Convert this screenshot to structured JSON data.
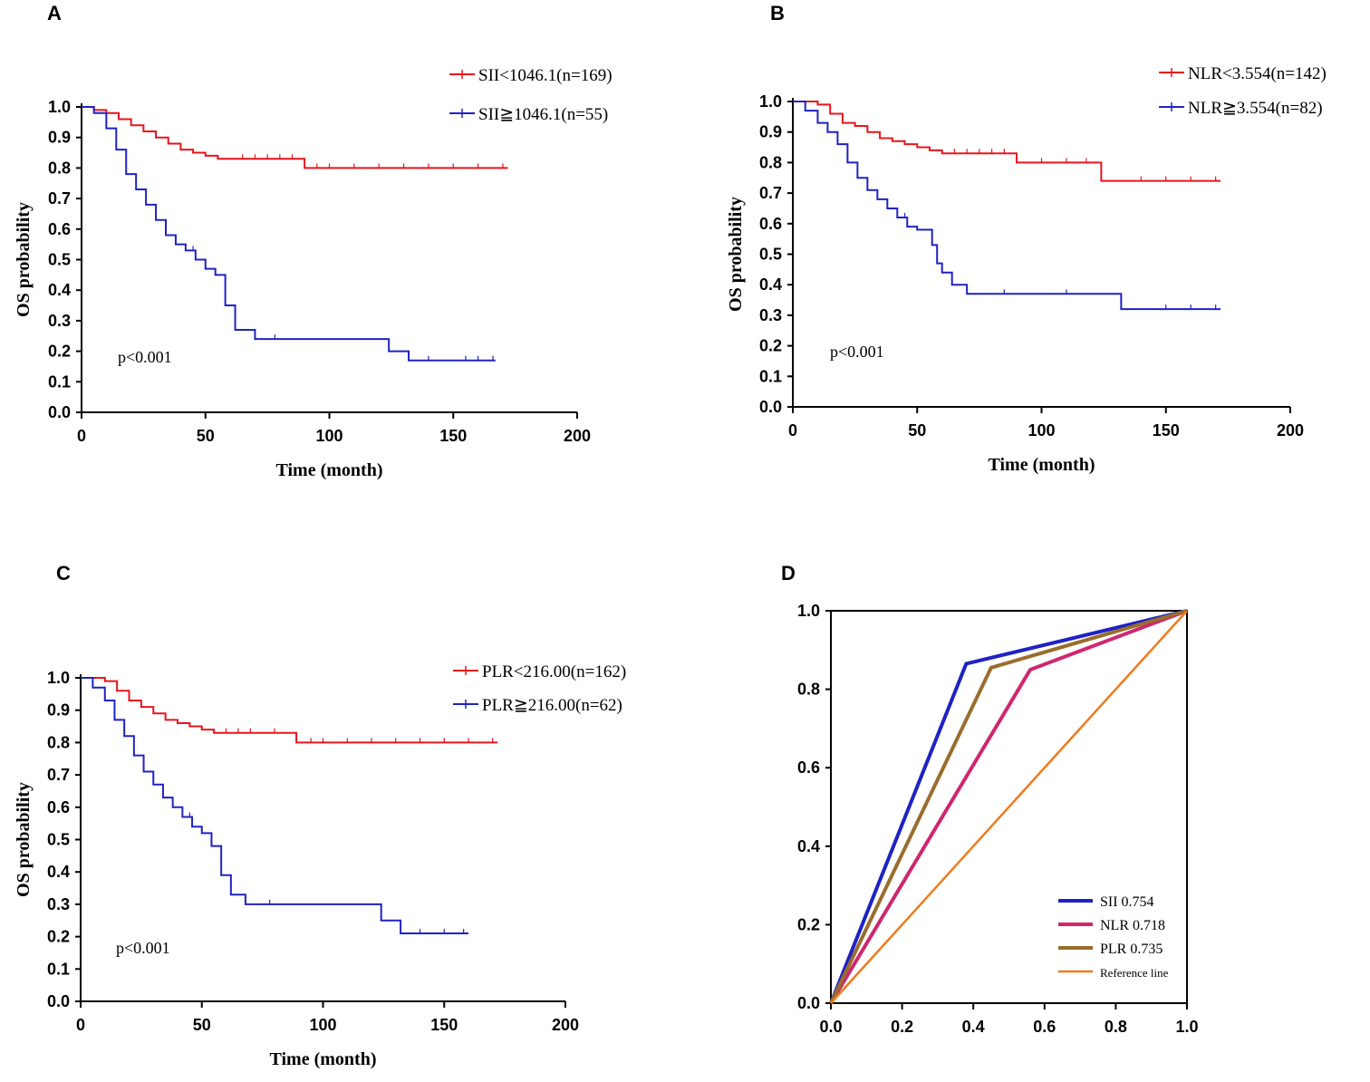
{
  "colors": {
    "red": "#e8141c",
    "blue": "#1f22c4",
    "magenta": "#d0266f",
    "brown": "#9a6d2d",
    "orange": "#f07a1c",
    "axis": "#000000"
  },
  "chart_data": [
    {
      "panel": "A",
      "type": "line",
      "subtype": "kaplan-meier",
      "xlabel": "Time (month)",
      "ylabel": "OS probability",
      "xlim": [
        0,
        200
      ],
      "ylim": [
        0,
        1.0
      ],
      "xticks": [
        "0",
        "50",
        "100",
        "150",
        "200"
      ],
      "yticks": [
        "0.0",
        "0.1",
        "0.2",
        "0.3",
        "0.4",
        "0.5",
        "0.6",
        "0.7",
        "0.8",
        "0.9",
        "1.0"
      ],
      "annotation": "p<0.001",
      "series": [
        {
          "name": "SII<1046.1(n=169)",
          "color": "red",
          "x": [
            0,
            5,
            10,
            15,
            20,
            25,
            30,
            35,
            40,
            45,
            50,
            55,
            60,
            90,
            172
          ],
          "y": [
            1.0,
            0.99,
            0.98,
            0.96,
            0.94,
            0.92,
            0.9,
            0.88,
            0.86,
            0.85,
            0.84,
            0.83,
            0.83,
            0.8,
            0.8
          ],
          "censor_x": [
            65,
            70,
            75,
            80,
            85,
            95,
            100,
            110,
            120,
            130,
            140,
            150,
            160,
            170
          ]
        },
        {
          "name": "SII≧1046.1(n=55)",
          "color": "blue",
          "x": [
            0,
            5,
            10,
            14,
            18,
            22,
            26,
            30,
            34,
            38,
            42,
            46,
            50,
            54,
            58,
            62,
            70,
            124,
            132,
            167
          ],
          "y": [
            1.0,
            0.98,
            0.93,
            0.86,
            0.78,
            0.73,
            0.68,
            0.63,
            0.58,
            0.55,
            0.53,
            0.5,
            0.47,
            0.45,
            0.35,
            0.27,
            0.24,
            0.2,
            0.17,
            0.17
          ],
          "censor_x": [
            45,
            78,
            140,
            155,
            160,
            166
          ]
        }
      ]
    },
    {
      "panel": "B",
      "type": "line",
      "subtype": "kaplan-meier",
      "xlabel": "Time (month)",
      "ylabel": "OS probability",
      "xlim": [
        0,
        200
      ],
      "ylim": [
        0,
        1.0
      ],
      "xticks": [
        "0",
        "50",
        "100",
        "150",
        "200"
      ],
      "yticks": [
        "0.0",
        "0.1",
        "0.2",
        "0.3",
        "0.4",
        "0.5",
        "0.6",
        "0.7",
        "0.8",
        "0.9",
        "1.0"
      ],
      "annotation": "p<0.001",
      "series": [
        {
          "name": "NLR<3.554(n=142)",
          "color": "red",
          "x": [
            0,
            10,
            15,
            20,
            25,
            30,
            35,
            40,
            45,
            50,
            55,
            60,
            90,
            124,
            172
          ],
          "y": [
            1.0,
            0.99,
            0.96,
            0.93,
            0.92,
            0.9,
            0.88,
            0.87,
            0.86,
            0.85,
            0.84,
            0.83,
            0.8,
            0.74,
            0.74
          ],
          "censor_x": [
            65,
            70,
            75,
            80,
            85,
            100,
            110,
            118,
            140,
            150,
            160,
            170
          ]
        },
        {
          "name": "NLR≧3.554(n=82)",
          "color": "blue",
          "x": [
            0,
            5,
            10,
            14,
            18,
            22,
            26,
            30,
            34,
            38,
            42,
            46,
            50,
            56,
            58,
            60,
            64,
            70,
            132,
            172
          ],
          "y": [
            1.0,
            0.97,
            0.93,
            0.9,
            0.86,
            0.8,
            0.75,
            0.71,
            0.68,
            0.65,
            0.62,
            0.59,
            0.58,
            0.53,
            0.47,
            0.44,
            0.4,
            0.37,
            0.32,
            0.32
          ],
          "censor_x": [
            45,
            85,
            110,
            150,
            160,
            170
          ]
        }
      ]
    },
    {
      "panel": "C",
      "type": "line",
      "subtype": "kaplan-meier",
      "xlabel": "Time (month)",
      "ylabel": "OS probability",
      "xlim": [
        0,
        200
      ],
      "ylim": [
        0,
        1.0
      ],
      "xticks": [
        "0",
        "50",
        "100",
        "150",
        "200"
      ],
      "yticks": [
        "0.0",
        "0.1",
        "0.2",
        "0.3",
        "0.4",
        "0.5",
        "0.6",
        "0.7",
        "0.8",
        "0.9",
        "1.0"
      ],
      "annotation": "p<0.001",
      "series": [
        {
          "name": "PLR<216.00(n=162)",
          "color": "red",
          "x": [
            0,
            10,
            15,
            20,
            25,
            30,
            35,
            40,
            45,
            50,
            55,
            89,
            172
          ],
          "y": [
            1.0,
            0.99,
            0.96,
            0.93,
            0.91,
            0.89,
            0.87,
            0.86,
            0.85,
            0.84,
            0.83,
            0.8,
            0.8
          ],
          "censor_x": [
            60,
            65,
            70,
            80,
            95,
            100,
            110,
            120,
            130,
            140,
            150,
            160,
            170
          ]
        },
        {
          "name": "PLR≧216.00(n=62)",
          "color": "blue",
          "x": [
            0,
            5,
            10,
            14,
            18,
            22,
            26,
            30,
            34,
            38,
            42,
            46,
            50,
            54,
            58,
            62,
            68,
            124,
            132,
            160
          ],
          "y": [
            1.0,
            0.97,
            0.93,
            0.87,
            0.82,
            0.76,
            0.71,
            0.67,
            0.63,
            0.6,
            0.57,
            0.54,
            0.52,
            0.48,
            0.39,
            0.33,
            0.3,
            0.25,
            0.21,
            0.21
          ],
          "censor_x": [
            45,
            78,
            140,
            150,
            158
          ]
        }
      ]
    },
    {
      "panel": "D",
      "type": "line",
      "subtype": "roc",
      "xlim": [
        0,
        1.0
      ],
      "ylim": [
        0,
        1.0
      ],
      "xticks": [
        "0.0",
        "0.2",
        "0.4",
        "0.6",
        "0.8",
        "1.0"
      ],
      "yticks": [
        "0.0",
        "0.2",
        "0.4",
        "0.6",
        "0.8",
        "1.0"
      ],
      "series": [
        {
          "name": "SII 0.754",
          "color": "blue",
          "x": [
            0,
            0.38,
            1.0
          ],
          "y": [
            0,
            0.865,
            1.0
          ]
        },
        {
          "name": "NLR 0.718",
          "color": "magenta",
          "x": [
            0,
            0.56,
            1.0
          ],
          "y": [
            0,
            0.85,
            1.0
          ]
        },
        {
          "name": "PLR 0.735",
          "color": "brown",
          "x": [
            0,
            0.45,
            1.0
          ],
          "y": [
            0,
            0.855,
            1.0
          ]
        },
        {
          "name": "Reference line",
          "color": "orange",
          "x": [
            0,
            1.0
          ],
          "y": [
            0,
            1.0
          ]
        }
      ]
    }
  ]
}
